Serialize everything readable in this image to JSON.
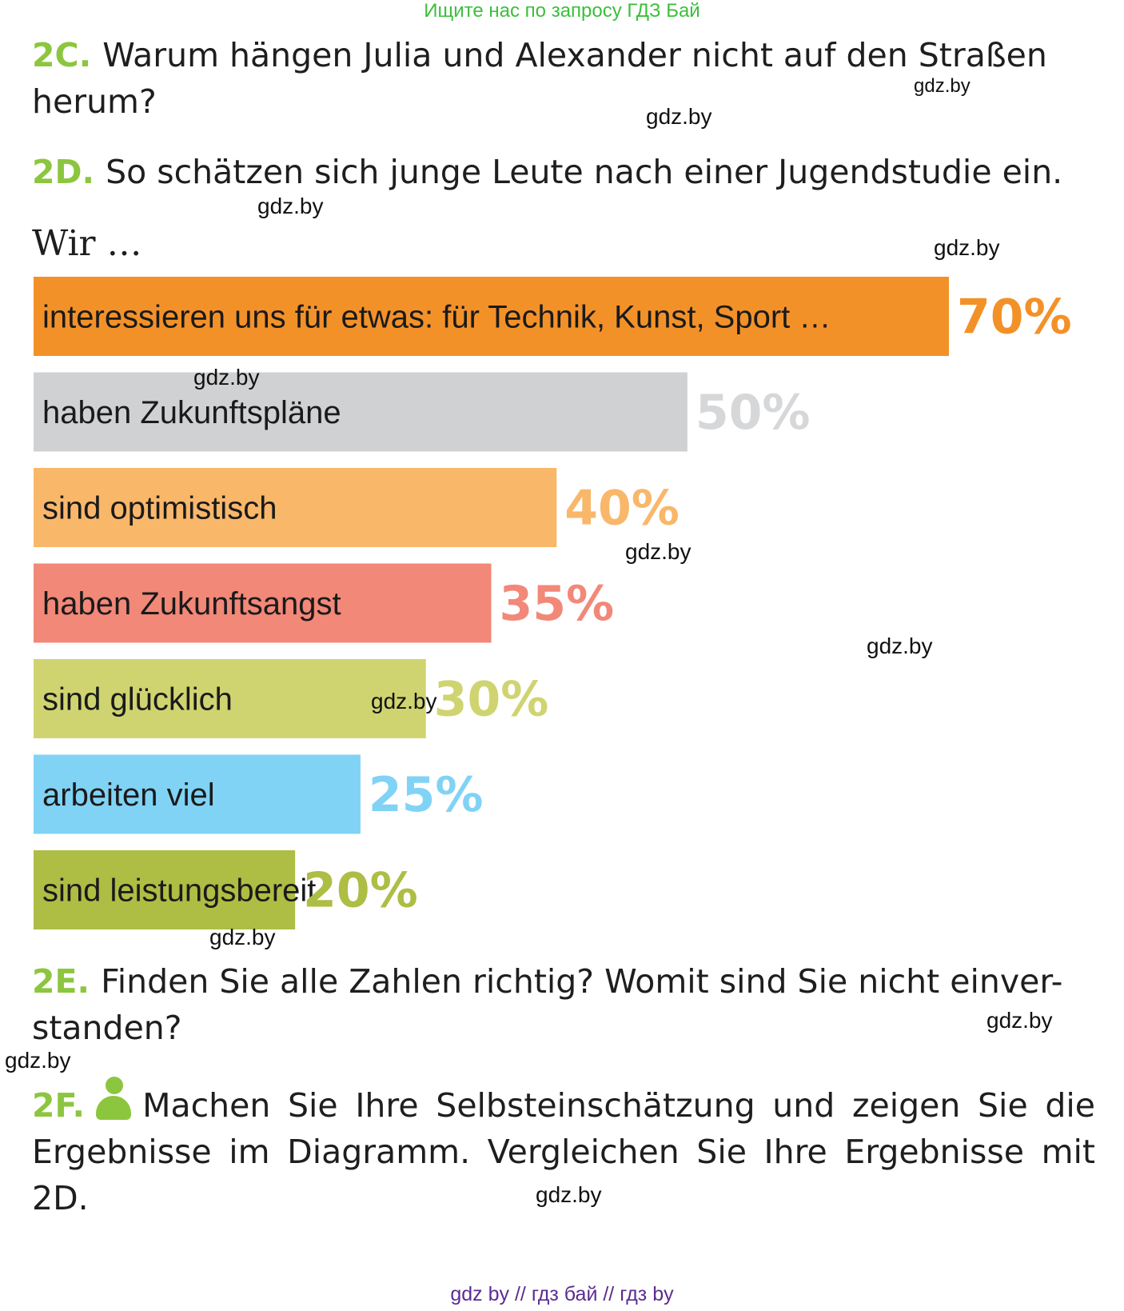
{
  "banner": "Ищите нас по запросу ГДЗ Бай",
  "task_2c": {
    "num": "2C.",
    "text": "Warum hängen Julia und Alexander nicht auf den Straßen herum?"
  },
  "task_2d": {
    "num": "2D.",
    "text": "So schätzen sich junge Leute nach einer Jugendstudie ein."
  },
  "wir": "Wir …",
  "chart_data": {
    "type": "bar",
    "orientation": "horizontal",
    "title": "",
    "xlabel": "",
    "ylabel": "",
    "xlim": [
      0,
      100
    ],
    "categories": [
      "interessieren uns für etwas: für Technik, Kunst, Sport …",
      "haben Zukunftspläne",
      "sind optimistisch",
      "haben Zukunftsangst",
      "sind glücklich",
      "arbeiten viel",
      "sind leistungsbereit"
    ],
    "values": [
      70,
      50,
      40,
      35,
      30,
      25,
      20
    ],
    "value_labels": [
      "70%",
      "50%",
      "40%",
      "35%",
      "30%",
      "25%",
      "20%"
    ],
    "colors": [
      "#f39129",
      "#d0d1d3",
      "#f9b76a",
      "#f28878",
      "#cfd470",
      "#80d3f5",
      "#aebd44"
    ],
    "grid": false,
    "legend": "none"
  },
  "task_2e": {
    "num": "2E.",
    "text": "Finden Sie alle Zahlen richtig? Womit sind Sie nicht einver-standen?"
  },
  "task_2f": {
    "num": "2F.",
    "icon": "person-icon",
    "text": "Machen Sie Ihre Selbsteinschätzung und zeigen Sie die Ergebnisse im Diagramm. Vergleichen Sie Ihre Ergebnisse mit 2D."
  },
  "watermark": "gdz.by",
  "footer": "gdz by  //  гдз бай  //  гдз by"
}
